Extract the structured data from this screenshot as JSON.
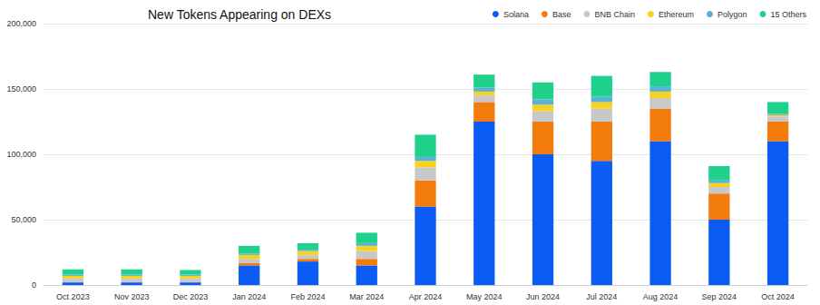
{
  "chart_data": {
    "type": "bar",
    "title": "New Tokens Appearing on DEXs",
    "categories": [
      "Oct 2023",
      "Nov 2023",
      "Dec 2023",
      "Jan 2024",
      "Feb 2024",
      "Mar 2024",
      "Apr 2024",
      "May 2024",
      "Jun 2024",
      "Jul 2024",
      "Aug 2024",
      "Sep 2024",
      "Oct 2024"
    ],
    "series": [
      {
        "name": "Solana",
        "color": "#0a5cf5",
        "values": [
          2000,
          2000,
          2000,
          15000,
          18000,
          15000,
          60000,
          125000,
          100000,
          95000,
          110000,
          50000,
          110000
        ]
      },
      {
        "name": "Base",
        "color": "#f47c0d",
        "values": [
          0,
          0,
          0,
          2000,
          2000,
          5000,
          20000,
          15000,
          25000,
          30000,
          25000,
          20000,
          15000
        ]
      },
      {
        "name": "BNB Chain",
        "color": "#c8c8c8",
        "values": [
          3000,
          3000,
          3000,
          3000,
          3000,
          6000,
          10000,
          5000,
          8000,
          10000,
          8000,
          5000,
          4000
        ]
      },
      {
        "name": "Ethereum",
        "color": "#f7d21e",
        "values": [
          2000,
          2000,
          2000,
          3000,
          3000,
          4000,
          5000,
          3000,
          5000,
          5000,
          5000,
          3000,
          1000
        ]
      },
      {
        "name": "Polygon",
        "color": "#5ab0d6",
        "values": [
          1000,
          1000,
          1000,
          1000,
          1000,
          2000,
          3000,
          3000,
          4000,
          4000,
          4000,
          2000,
          1000
        ]
      },
      {
        "name": "15 Others",
        "color": "#1fd18b",
        "values": [
          4000,
          4000,
          3500,
          6000,
          5000,
          8000,
          17000,
          10000,
          13000,
          16000,
          11000,
          11000,
          9000
        ]
      }
    ],
    "ylim": [
      0,
      200000
    ],
    "yticks": [
      0,
      {
        "value": 50000,
        "label": "50,000"
      },
      {
        "value": 100000,
        "label": "100,000"
      },
      {
        "value": 150000,
        "label": "150,000"
      },
      {
        "value": 200000,
        "label": "200,000"
      }
    ],
    "stacked": true,
    "grid": true,
    "legend": "top-right"
  }
}
